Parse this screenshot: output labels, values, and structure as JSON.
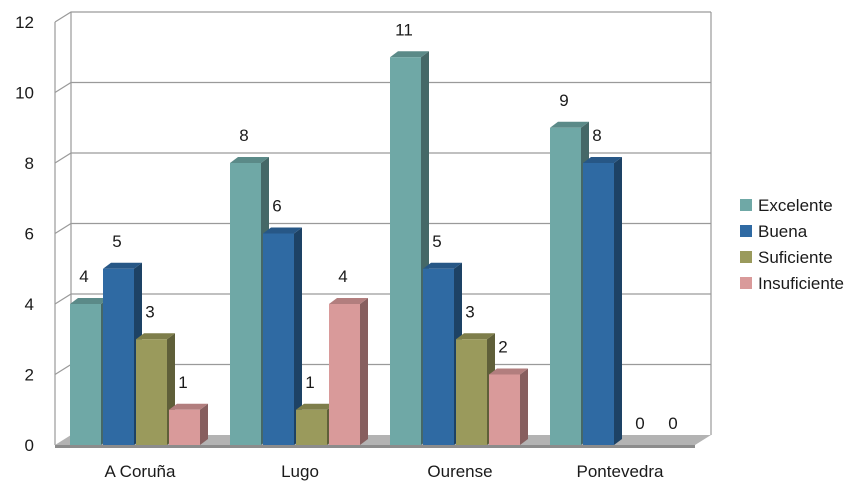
{
  "chart_data": {
    "type": "bar",
    "variant": "3d-clustered",
    "title": "",
    "xlabel": "",
    "ylabel": "",
    "ylim": [
      0,
      12
    ],
    "yticks": [
      0,
      2,
      4,
      6,
      8,
      10,
      12
    ],
    "grid": true,
    "legend_position": "right",
    "categories": [
      "A Coruña",
      "Lugo",
      "Ourense",
      "Pontevedra"
    ],
    "series": [
      {
        "name": "Excelente",
        "color": "#6fa8a6",
        "values": [
          4,
          8,
          11,
          9
        ]
      },
      {
        "name": "Buena",
        "color": "#2f6aa3",
        "values": [
          5,
          6,
          5,
          8
        ]
      },
      {
        "name": "Suficiente",
        "color": "#9a9a5c",
        "values": [
          3,
          1,
          3,
          0
        ]
      },
      {
        "name": "Insuficiente",
        "color": "#d99a9a",
        "values": [
          1,
          4,
          2,
          0
        ]
      }
    ]
  }
}
